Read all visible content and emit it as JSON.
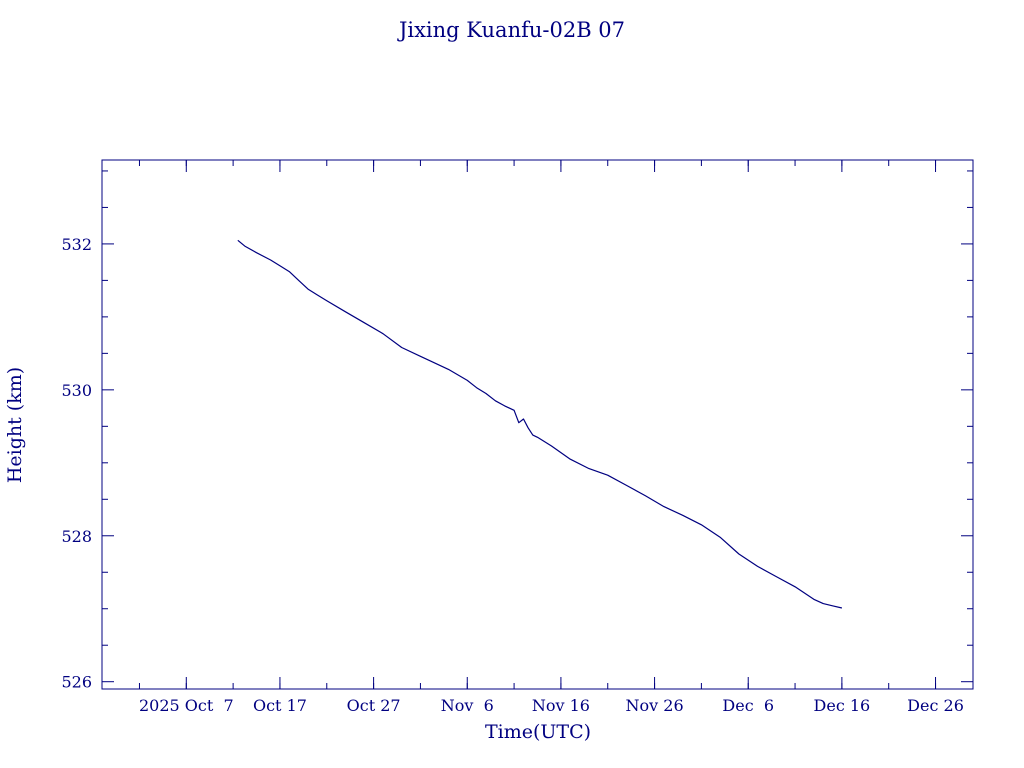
{
  "chart_data": {
    "type": "line",
    "title": "Jixing Kuanfu-02B 07",
    "xlabel": "Time(UTC)",
    "ylabel": "Height (km)",
    "color": "#000080",
    "xlim": [
      "2025-09-28",
      "2025-12-30"
    ],
    "ylim": [
      525.9,
      533.15
    ],
    "x_ticks": [
      {
        "date": "2025-10-07",
        "label": "2025 Oct  7"
      },
      {
        "date": "2025-10-17",
        "label": "Oct 17"
      },
      {
        "date": "2025-10-27",
        "label": "Oct 27"
      },
      {
        "date": "2025-11-06",
        "label": "Nov  6"
      },
      {
        "date": "2025-11-16",
        "label": "Nov 16"
      },
      {
        "date": "2025-11-26",
        "label": "Nov 26"
      },
      {
        "date": "2025-12-06",
        "label": "Dec  6"
      },
      {
        "date": "2025-12-16",
        "label": "Dec 16"
      },
      {
        "date": "2025-12-26",
        "label": "Dec 26"
      }
    ],
    "y_ticks": [
      {
        "value": 526,
        "label": "526"
      },
      {
        "value": 528,
        "label": "528"
      },
      {
        "value": 530,
        "label": "530"
      },
      {
        "value": 532,
        "label": "532"
      }
    ],
    "grid": false,
    "series": [
      {
        "x": [
          "2025-10-12T12:00",
          "2025-10-13T06:00",
          "2025-10-14T12:00",
          "2025-10-16T00:00",
          "2025-10-17T00:00",
          "2025-10-18T00:00",
          "2025-10-19T00:00",
          "2025-10-20T00:00",
          "2025-10-21T00:00",
          "2025-10-22T00:00",
          "2025-10-24T00:00",
          "2025-10-26T00:00",
          "2025-10-28T00:00",
          "2025-10-30T00:00",
          "2025-11-01T00:00",
          "2025-11-02T00:00",
          "2025-11-04T00:00",
          "2025-11-06T00:00",
          "2025-11-07T00:00",
          "2025-11-08T00:00",
          "2025-11-09T00:00",
          "2025-11-10T00:00",
          "2025-11-11T00:00",
          "2025-11-11T12:00",
          "2025-11-12T00:00",
          "2025-11-12T12:00",
          "2025-11-13T00:00",
          "2025-11-13T12:00",
          "2025-11-15T00:00",
          "2025-11-17T00:00",
          "2025-11-19T00:00",
          "2025-11-21T00:00",
          "2025-11-23T00:00",
          "2025-11-25T00:00",
          "2025-11-27T00:00",
          "2025-11-29T00:00",
          "2025-12-01T00:00",
          "2025-12-03T00:00",
          "2025-12-05T00:00",
          "2025-12-07T00:00",
          "2025-12-09T00:00",
          "2025-12-11T00:00",
          "2025-12-13T00:00",
          "2025-12-14T00:00",
          "2025-12-15T00:00",
          "2025-12-16T00:00"
        ],
        "y": [
          532.05,
          531.97,
          531.88,
          531.78,
          531.7,
          531.62,
          531.5,
          531.38,
          531.3,
          531.22,
          531.07,
          530.92,
          530.77,
          530.58,
          530.46,
          530.4,
          530.28,
          530.13,
          530.03,
          529.95,
          529.85,
          529.78,
          529.72,
          529.55,
          529.6,
          529.48,
          529.38,
          529.35,
          529.23,
          529.05,
          528.92,
          528.83,
          528.69,
          528.55,
          528.4,
          528.28,
          528.15,
          527.98,
          527.75,
          527.58,
          527.44,
          527.3,
          527.13,
          527.07,
          527.04,
          527.01
        ]
      }
    ]
  }
}
